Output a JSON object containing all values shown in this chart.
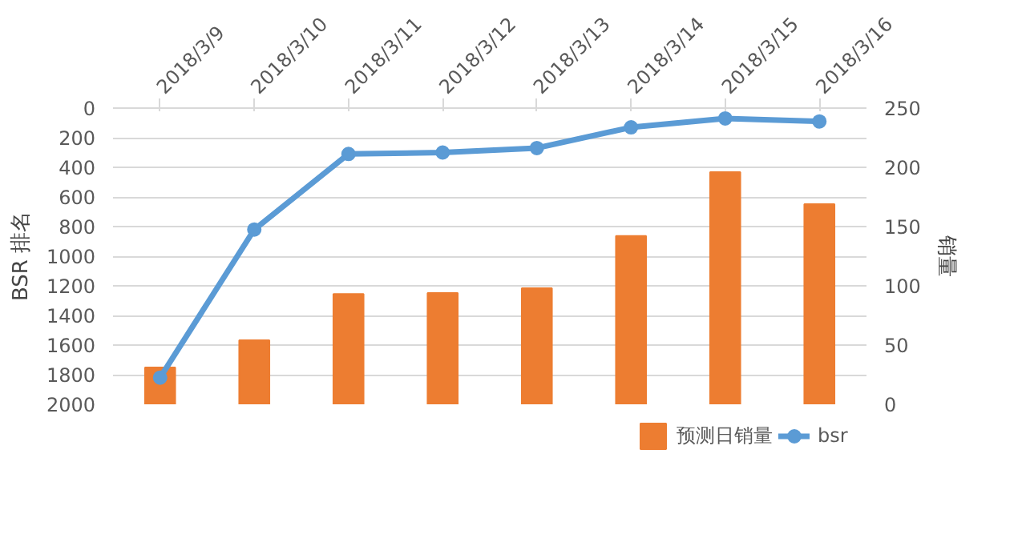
{
  "chart_data": {
    "type": "bar",
    "categories": [
      "2018/3/9",
      "2018/3/10",
      "2018/3/11",
      "2018/3/12",
      "2018/3/13",
      "2018/3/14",
      "2018/3/15",
      "2018/3/16"
    ],
    "ylabel": "BSR 排名",
    "y2label": "销量",
    "ylim": [
      2000,
      0
    ],
    "yticks": [
      0,
      200,
      400,
      600,
      800,
      1000,
      1200,
      1400,
      1600,
      1800,
      2000
    ],
    "y2lim": [
      0,
      250
    ],
    "y2ticks": [
      0,
      50,
      100,
      150,
      200,
      250
    ],
    "series": [
      {
        "name": "预测日销量",
        "axis": "y2",
        "color": "#ed7d31",
        "values": [
          31,
          54,
          93,
          94,
          98,
          142,
          196,
          169
        ]
      },
      {
        "name": "bsr",
        "type": "line",
        "axis": "y",
        "color": "#5b9bd5",
        "values": [
          1820,
          820,
          310,
          300,
          270,
          130,
          70,
          90
        ]
      }
    ],
    "marker": "circle",
    "grid": "y",
    "legend": "bottom"
  }
}
